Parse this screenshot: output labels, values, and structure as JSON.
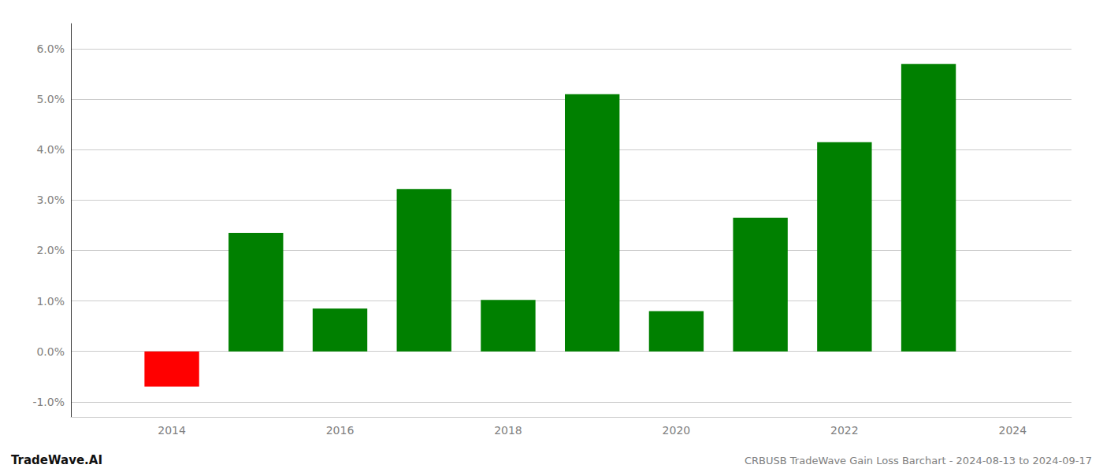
{
  "chart_data": {
    "type": "bar",
    "x": [
      2014,
      2015,
      2016,
      2017,
      2018,
      2019,
      2020,
      2021,
      2022,
      2023
    ],
    "values": [
      -0.007,
      0.0235,
      0.0085,
      0.0322,
      0.0102,
      0.051,
      0.008,
      0.0265,
      0.0415,
      0.057
    ],
    "colors": [
      "#ff0000",
      "#008000",
      "#008000",
      "#008000",
      "#008000",
      "#008000",
      "#008000",
      "#008000",
      "#008000",
      "#008000"
    ],
    "xlim": [
      2012.8,
      2024.7
    ],
    "xticks": [
      2014,
      2016,
      2018,
      2020,
      2022,
      2024
    ],
    "ylim": [
      -0.013,
      0.065
    ],
    "yticks": [
      {
        "value": -0.01,
        "label": "-1.0%"
      },
      {
        "value": 0.0,
        "label": "0.0%"
      },
      {
        "value": 0.01,
        "label": "1.0%"
      },
      {
        "value": 0.02,
        "label": "2.0%"
      },
      {
        "value": 0.03,
        "label": "3.0%"
      },
      {
        "value": 0.04,
        "label": "4.0%"
      },
      {
        "value": 0.05,
        "label": "5.0%"
      },
      {
        "value": 0.06,
        "label": "6.0%"
      }
    ],
    "grid": true,
    "annotations": [
      "TradeWave.AI",
      "CRBUSB TradeWave Gain Loss Barchart - 2024-08-13 to 2024-09-17"
    ]
  }
}
